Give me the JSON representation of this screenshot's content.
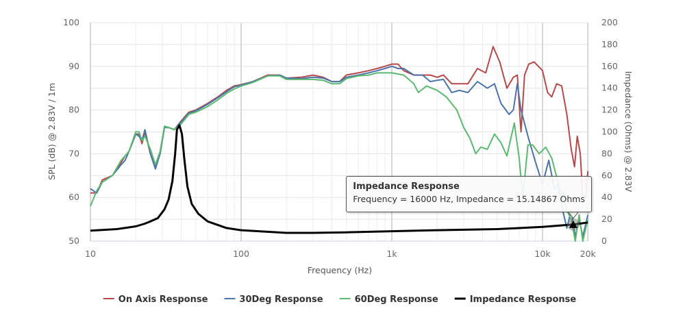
{
  "chart_data": {
    "type": "line",
    "xlabel": "Frequency (Hz)",
    "ylabel": "SPL (dB) @ 2.83V / 1m",
    "y2label": "Impedance (Ohms) @ 2.83V",
    "x_scale": "log",
    "xlim": [
      10,
      20000
    ],
    "ylim": [
      50,
      100
    ],
    "y2lim": [
      0,
      200
    ],
    "grid": true,
    "legend_position": "bottom",
    "x_ticks": [
      {
        "v": 10,
        "label": "10"
      },
      {
        "v": 100,
        "label": "100"
      },
      {
        "v": 1000,
        "label": "1k"
      },
      {
        "v": 10000,
        "label": "10k"
      },
      {
        "v": 20000,
        "label": "20k"
      }
    ],
    "y_ticks": [
      "50",
      "60",
      "70",
      "80",
      "90",
      "100"
    ],
    "y2_ticks": [
      "0",
      "20",
      "40",
      "60",
      "80",
      "100",
      "120",
      "140",
      "160",
      "180",
      "200"
    ],
    "series": [
      {
        "name": "On Axis Response",
        "color": "#b5484a",
        "axis": "left",
        "points": [
          [
            10,
            61
          ],
          [
            11,
            61
          ],
          [
            12,
            64
          ],
          [
            14,
            65
          ],
          [
            16,
            68
          ],
          [
            17,
            69.5
          ],
          [
            18,
            70.5
          ],
          [
            20,
            74.5
          ],
          [
            21,
            74.5
          ],
          [
            22,
            72.3
          ],
          [
            23,
            75
          ],
          [
            25,
            70
          ],
          [
            27,
            67
          ],
          [
            29,
            70
          ],
          [
            31,
            76
          ],
          [
            33,
            76
          ],
          [
            36,
            75.5
          ],
          [
            40,
            77.5
          ],
          [
            45,
            79.5
          ],
          [
            50,
            80
          ],
          [
            60,
            81.5
          ],
          [
            70,
            83
          ],
          [
            80,
            84.5
          ],
          [
            90,
            85.5
          ],
          [
            100,
            85.8
          ],
          [
            120,
            86.5
          ],
          [
            150,
            88
          ],
          [
            180,
            88
          ],
          [
            200,
            87.3
          ],
          [
            250,
            87.5
          ],
          [
            300,
            88
          ],
          [
            350,
            87.5
          ],
          [
            400,
            86.5
          ],
          [
            450,
            86.5
          ],
          [
            500,
            88
          ],
          [
            600,
            88.5
          ],
          [
            700,
            89
          ],
          [
            800,
            89.5
          ],
          [
            900,
            90
          ],
          [
            1000,
            90.5
          ],
          [
            1100,
            90.5
          ],
          [
            1200,
            89
          ],
          [
            1400,
            88
          ],
          [
            1600,
            88
          ],
          [
            1800,
            88
          ],
          [
            2000,
            87.5
          ],
          [
            2200,
            88
          ],
          [
            2500,
            86
          ],
          [
            2800,
            86
          ],
          [
            3200,
            86
          ],
          [
            3700,
            89.5
          ],
          [
            4200,
            88.5
          ],
          [
            4700,
            94.5
          ],
          [
            5200,
            91
          ],
          [
            5800,
            85
          ],
          [
            6400,
            87.5
          ],
          [
            6800,
            88
          ],
          [
            7200,
            75
          ],
          [
            7600,
            88
          ],
          [
            8100,
            90.5
          ],
          [
            8800,
            91
          ],
          [
            10000,
            89
          ],
          [
            10800,
            84
          ],
          [
            11500,
            83
          ],
          [
            12400,
            86
          ],
          [
            13400,
            85.5
          ],
          [
            14500,
            79
          ],
          [
            15500,
            71
          ],
          [
            16300,
            67
          ],
          [
            17000,
            74
          ],
          [
            17800,
            70
          ],
          [
            18500,
            60
          ],
          [
            19300,
            60
          ],
          [
            20000,
            66
          ]
        ]
      },
      {
        "name": "30Deg Response",
        "color": "#4a74a8",
        "axis": "left",
        "points": [
          [
            10,
            62
          ],
          [
            11,
            61
          ],
          [
            12,
            63.5
          ],
          [
            14,
            65
          ],
          [
            16,
            67.5
          ],
          [
            17,
            68.5
          ],
          [
            18,
            70.5
          ],
          [
            20,
            74.5
          ],
          [
            21,
            74
          ],
          [
            22,
            73
          ],
          [
            23,
            75.5
          ],
          [
            25,
            70
          ],
          [
            27,
            66.5
          ],
          [
            29,
            70
          ],
          [
            31,
            76
          ],
          [
            33,
            76
          ],
          [
            36,
            75.5
          ],
          [
            40,
            77.3
          ],
          [
            45,
            79.3
          ],
          [
            50,
            79.8
          ],
          [
            60,
            81.3
          ],
          [
            70,
            82.8
          ],
          [
            80,
            84.2
          ],
          [
            90,
            85.3
          ],
          [
            100,
            85.7
          ],
          [
            120,
            86.5
          ],
          [
            150,
            87.8
          ],
          [
            180,
            88
          ],
          [
            200,
            87.3
          ],
          [
            250,
            87.2
          ],
          [
            300,
            87.5
          ],
          [
            350,
            87.3
          ],
          [
            400,
            86.5
          ],
          [
            450,
            86.5
          ],
          [
            500,
            87.5
          ],
          [
            600,
            88
          ],
          [
            700,
            88.5
          ],
          [
            800,
            89
          ],
          [
            900,
            89.5
          ],
          [
            1000,
            90
          ],
          [
            1100,
            89.5
          ],
          [
            1200,
            89.5
          ],
          [
            1400,
            88
          ],
          [
            1600,
            88
          ],
          [
            1800,
            86.5
          ],
          [
            2000,
            86.8
          ],
          [
            2200,
            87
          ],
          [
            2500,
            84
          ],
          [
            2800,
            84.5
          ],
          [
            3200,
            84
          ],
          [
            3700,
            86.5
          ],
          [
            4300,
            85
          ],
          [
            4800,
            86
          ],
          [
            5300,
            81.5
          ],
          [
            6000,
            79
          ],
          [
            6400,
            80
          ],
          [
            6800,
            86
          ],
          [
            7200,
            80
          ],
          [
            8000,
            74
          ],
          [
            9000,
            68
          ],
          [
            10000,
            63
          ],
          [
            11000,
            68.5
          ],
          [
            12000,
            62
          ],
          [
            12600,
            63
          ],
          [
            13500,
            57.5
          ],
          [
            14500,
            53
          ],
          [
            15500,
            57
          ],
          [
            16500,
            51
          ],
          [
            17500,
            55
          ],
          [
            18500,
            51
          ],
          [
            20000,
            56
          ]
        ]
      },
      {
        "name": "60Deg Response",
        "color": "#5cb870",
        "axis": "left",
        "points": [
          [
            10,
            58
          ],
          [
            11,
            61.5
          ],
          [
            12,
            63.5
          ],
          [
            14,
            65
          ],
          [
            16,
            68.5
          ],
          [
            17,
            69.5
          ],
          [
            18,
            70.5
          ],
          [
            20,
            75
          ],
          [
            21,
            75
          ],
          [
            22,
            73
          ],
          [
            23,
            74
          ],
          [
            25,
            71
          ],
          [
            27,
            67.5
          ],
          [
            29,
            70.5
          ],
          [
            31,
            76.3
          ],
          [
            33,
            76
          ],
          [
            36,
            75.5
          ],
          [
            40,
            76.8
          ],
          [
            45,
            79
          ],
          [
            50,
            79.5
          ],
          [
            60,
            80.8
          ],
          [
            70,
            82.3
          ],
          [
            80,
            83.8
          ],
          [
            90,
            84.8
          ],
          [
            100,
            85.5
          ],
          [
            120,
            86.3
          ],
          [
            150,
            87.8
          ],
          [
            180,
            87.8
          ],
          [
            200,
            87
          ],
          [
            250,
            87
          ],
          [
            300,
            87
          ],
          [
            350,
            86.8
          ],
          [
            400,
            86
          ],
          [
            450,
            86
          ],
          [
            500,
            87.2
          ],
          [
            600,
            87.8
          ],
          [
            700,
            88
          ],
          [
            800,
            88.5
          ],
          [
            900,
            88.5
          ],
          [
            1000,
            88.5
          ],
          [
            1200,
            88
          ],
          [
            1400,
            86
          ],
          [
            1500,
            84
          ],
          [
            1700,
            85.5
          ],
          [
            2000,
            84.5
          ],
          [
            2300,
            83
          ],
          [
            2700,
            80
          ],
          [
            3000,
            76
          ],
          [
            3300,
            73.5
          ],
          [
            3600,
            70
          ],
          [
            3900,
            71.5
          ],
          [
            4300,
            71
          ],
          [
            4800,
            74.5
          ],
          [
            5300,
            72.5
          ],
          [
            5800,
            69.5
          ],
          [
            6500,
            77
          ],
          [
            7000,
            69
          ],
          [
            7400,
            60
          ],
          [
            8000,
            72
          ],
          [
            8600,
            72
          ],
          [
            9500,
            70
          ],
          [
            10500,
            71.5
          ],
          [
            11500,
            69
          ],
          [
            13000,
            62
          ],
          [
            14500,
            57
          ],
          [
            15500,
            55
          ],
          [
            16500,
            50
          ],
          [
            17500,
            56
          ],
          [
            18500,
            50
          ],
          [
            20000,
            55
          ]
        ]
      },
      {
        "name": "Impedance Response",
        "color": "#000000",
        "axis": "right",
        "points": [
          [
            10,
            9.5
          ],
          [
            15,
            11
          ],
          [
            20,
            13.5
          ],
          [
            23,
            16
          ],
          [
            25,
            18
          ],
          [
            28,
            21
          ],
          [
            31,
            29
          ],
          [
            33,
            38
          ],
          [
            35,
            55
          ],
          [
            36.5,
            80
          ],
          [
            37.5,
            102
          ],
          [
            39,
            106
          ],
          [
            40.5,
            98
          ],
          [
            42,
            75
          ],
          [
            44,
            50
          ],
          [
            47,
            34
          ],
          [
            52,
            25
          ],
          [
            60,
            18
          ],
          [
            80,
            12
          ],
          [
            100,
            10
          ],
          [
            150,
            8.5
          ],
          [
            200,
            7.5
          ],
          [
            300,
            7.5
          ],
          [
            500,
            8
          ],
          [
            1000,
            9
          ],
          [
            2000,
            10
          ],
          [
            5000,
            11
          ],
          [
            10000,
            13
          ],
          [
            16000,
            15.15
          ],
          [
            20000,
            17
          ]
        ]
      }
    ],
    "tooltip": {
      "title": "Impedance Response",
      "text": "Frequency = 16000 Hz, Impedance = 15.14867 Ohms",
      "frequency": 16000,
      "impedance": 15.14867
    }
  }
}
